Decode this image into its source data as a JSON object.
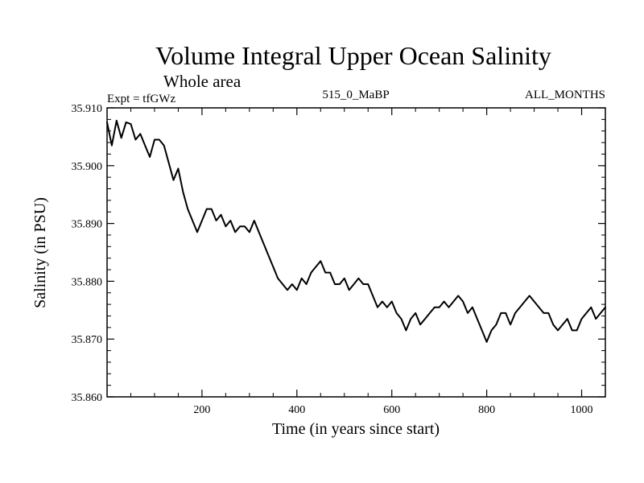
{
  "chart_data": {
    "type": "line",
    "title": "Volume Integral Upper Ocean Salinity",
    "subtitle": "Whole area",
    "annotations": {
      "left": "Expt = tfGWz",
      "center": "515_0_MaBP",
      "right": "ALL_MONTHS"
    },
    "xlabel": "Time (in years since start)",
    "ylabel": "Salinity (in PSU)",
    "xlim": [
      0,
      1050
    ],
    "ylim": [
      35.86,
      35.91
    ],
    "x_ticks": [
      200,
      400,
      600,
      800,
      1000
    ],
    "x_tick_labels": [
      "200",
      "400",
      "600",
      "800",
      "1000"
    ],
    "y_ticks": [
      35.86,
      35.87,
      35.88,
      35.89,
      35.9,
      35.91
    ],
    "y_tick_labels": [
      "35.860",
      "35.870",
      "35.880",
      "35.890",
      "35.900",
      "35.910"
    ],
    "grid": false,
    "line_color": "#000000",
    "series": [
      {
        "name": "Salinity",
        "x": [
          0,
          10,
          20,
          30,
          40,
          50,
          60,
          70,
          80,
          90,
          100,
          110,
          120,
          130,
          140,
          150,
          160,
          170,
          180,
          190,
          200,
          210,
          220,
          230,
          240,
          250,
          260,
          270,
          280,
          290,
          300,
          310,
          320,
          330,
          340,
          350,
          360,
          370,
          380,
          390,
          400,
          410,
          420,
          430,
          440,
          450,
          460,
          470,
          480,
          490,
          500,
          510,
          520,
          530,
          540,
          550,
          560,
          570,
          580,
          590,
          600,
          610,
          620,
          630,
          640,
          650,
          660,
          670,
          680,
          690,
          700,
          710,
          720,
          730,
          740,
          750,
          760,
          770,
          780,
          790,
          800,
          810,
          820,
          830,
          840,
          850,
          860,
          870,
          880,
          890,
          900,
          910,
          920,
          930,
          940,
          950,
          960,
          970,
          980,
          990,
          1000,
          1010,
          1020,
          1030,
          1040,
          1050
        ],
        "values": [
          35.9075,
          35.9035,
          35.9078,
          35.9048,
          35.9075,
          35.9072,
          35.9045,
          35.9055,
          35.9035,
          35.9015,
          35.9045,
          35.9045,
          35.9035,
          35.9005,
          35.8975,
          35.8995,
          35.8955,
          35.8925,
          35.8905,
          35.8885,
          35.8905,
          35.8925,
          35.8925,
          35.8905,
          35.8915,
          35.8895,
          35.8905,
          35.8885,
          35.8895,
          35.8895,
          35.8885,
          35.8905,
          35.8885,
          35.8865,
          35.8845,
          35.8825,
          35.8805,
          35.8795,
          35.8785,
          35.8795,
          35.8785,
          35.8805,
          35.8795,
          35.8815,
          35.8825,
          35.8835,
          35.8815,
          35.8815,
          35.8795,
          35.8795,
          35.8805,
          35.8785,
          35.8795,
          35.8805,
          35.8795,
          35.8795,
          35.8775,
          35.8755,
          35.8765,
          35.8755,
          35.8765,
          35.8745,
          35.8735,
          35.8715,
          35.8735,
          35.8745,
          35.8725,
          35.8735,
          35.8745,
          35.8755,
          35.8755,
          35.8765,
          35.8755,
          35.8765,
          35.8775,
          35.8765,
          35.8745,
          35.8755,
          35.8735,
          35.8715,
          35.8695,
          35.8715,
          35.8725,
          35.8745,
          35.8745,
          35.8725,
          35.8745,
          35.8755,
          35.8765,
          35.8775,
          35.8765,
          35.8755,
          35.8745,
          35.8745,
          35.8725,
          35.8715,
          35.8725,
          35.8735,
          35.8715,
          35.8715,
          35.8735,
          35.8745,
          35.8755,
          35.8735,
          35.8745,
          35.8755
        ]
      }
    ]
  }
}
